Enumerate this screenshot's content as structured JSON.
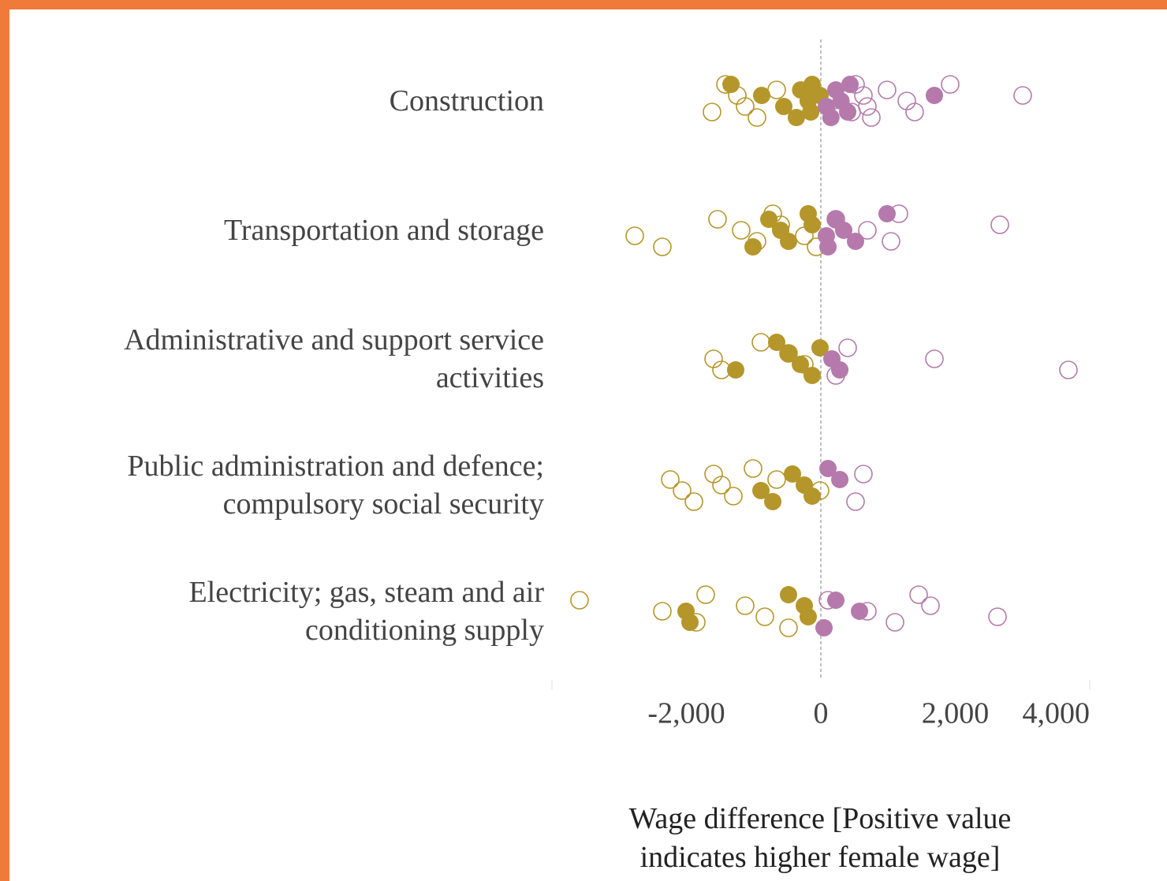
{
  "chart_data": {
    "type": "strip",
    "x_label": "Wage difference [Positive value indicates higher female wage]",
    "categories": [
      "Construction",
      "Transportation and storage",
      "Administrative and support service activities",
      "Public administration and defence; compulsory social security",
      "Electricity; gas, steam and air conditioning supply"
    ],
    "negative_color": "#b5962a",
    "positive_color": "#b57aab",
    "zero_line": true,
    "xlim": [
      -4000,
      4000
    ],
    "xticks": [
      {
        "value": -2000,
        "label": "-2,000"
      },
      0,
      {
        "value": 2000,
        "label": "2,000"
      },
      {
        "value": 4000,
        "label": "4,000"
      }
    ],
    "series": [
      {
        "marker": "filled",
        "values": [
          [
            -1337,
            -880,
            -551,
            -364,
            -300,
            -188,
            -150,
            -129,
            -12,
            82,
            150,
            223,
            300,
            399,
            434,
            1689
          ],
          [
            -1009,
            -774,
            -598,
            -481,
            -188,
            -129,
            82,
            106,
            223,
            340,
            516,
            985
          ],
          [
            -1267,
            -657,
            -481,
            -305,
            -129,
            -12,
            164,
            282
          ],
          [
            -891,
            -715,
            -422,
            -246,
            -129,
            106,
            282
          ],
          [
            -2006,
            -1947,
            -481,
            -246,
            -188,
            47,
            223,
            575
          ]
        ]
      },
      {
        "marker": "hollow",
        "values": [
          [
            -1619,
            -1419,
            -1243,
            -1126,
            -950,
            -657,
            164,
            458,
            516,
            633,
            692,
            751,
            985,
            1279,
            1396,
            1924,
            3003
          ],
          [
            -2768,
            -2358,
            -1537,
            -1185,
            -950,
            -715,
            -598,
            -246,
            -70,
            223,
            692,
            1044,
            1161,
            2663
          ],
          [
            -1595,
            -1478,
            -891,
            -481,
            -246,
            223,
            399,
            1689,
            3683
          ],
          [
            -2240,
            -2064,
            -1888,
            -1595,
            -1478,
            -1302,
            -1009,
            -657,
            -12,
            516,
            633
          ],
          [
            -3590,
            -2358,
            -1853,
            -1713,
            -1126,
            -833,
            -481,
            106,
            692,
            1103,
            1455,
            1631,
            2628
          ]
        ]
      }
    ]
  }
}
